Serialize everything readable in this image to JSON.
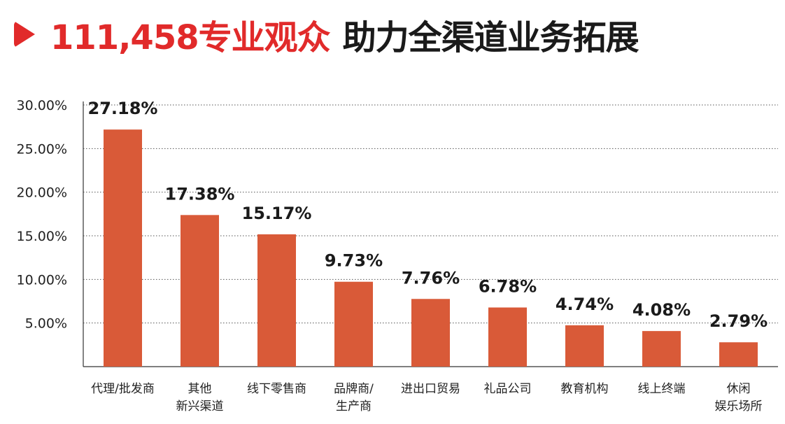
{
  "header": {
    "title_highlight": "111,458专业观众",
    "title_rest": "助力全渠道业务拓展",
    "accent_color": "#e12a2a",
    "icon": "play-icon"
  },
  "chart_data": {
    "type": "bar",
    "title": "111,458专业观众 助力全渠道业务拓展",
    "categories": [
      [
        "代理/批发商"
      ],
      [
        "其他",
        "新兴渠道"
      ],
      [
        "线下零售商"
      ],
      [
        "品牌商/",
        "生产商"
      ],
      [
        "进出口贸易"
      ],
      [
        "礼品公司"
      ],
      [
        "教育机构"
      ],
      [
        "线上终端"
      ],
      [
        "休闲",
        "娱乐场所"
      ]
    ],
    "values": [
      27.18,
      17.38,
      15.17,
      9.73,
      7.76,
      6.78,
      4.74,
      4.08,
      2.79
    ],
    "value_labels": [
      "27.18%",
      "17.38%",
      "15.17%",
      "9.73%",
      "7.76%",
      "6.78%",
      "4.74%",
      "4.08%",
      "2.79%"
    ],
    "y_ticks": [
      5,
      10,
      15,
      20,
      25,
      30
    ],
    "y_tick_labels": [
      "5.00%",
      "10.00%",
      "15.00%",
      "20.00%",
      "25.00%",
      "30.00%"
    ],
    "ylim": [
      0,
      30
    ],
    "grid": "dotted horizontal",
    "bar_color": "#d95a38"
  }
}
